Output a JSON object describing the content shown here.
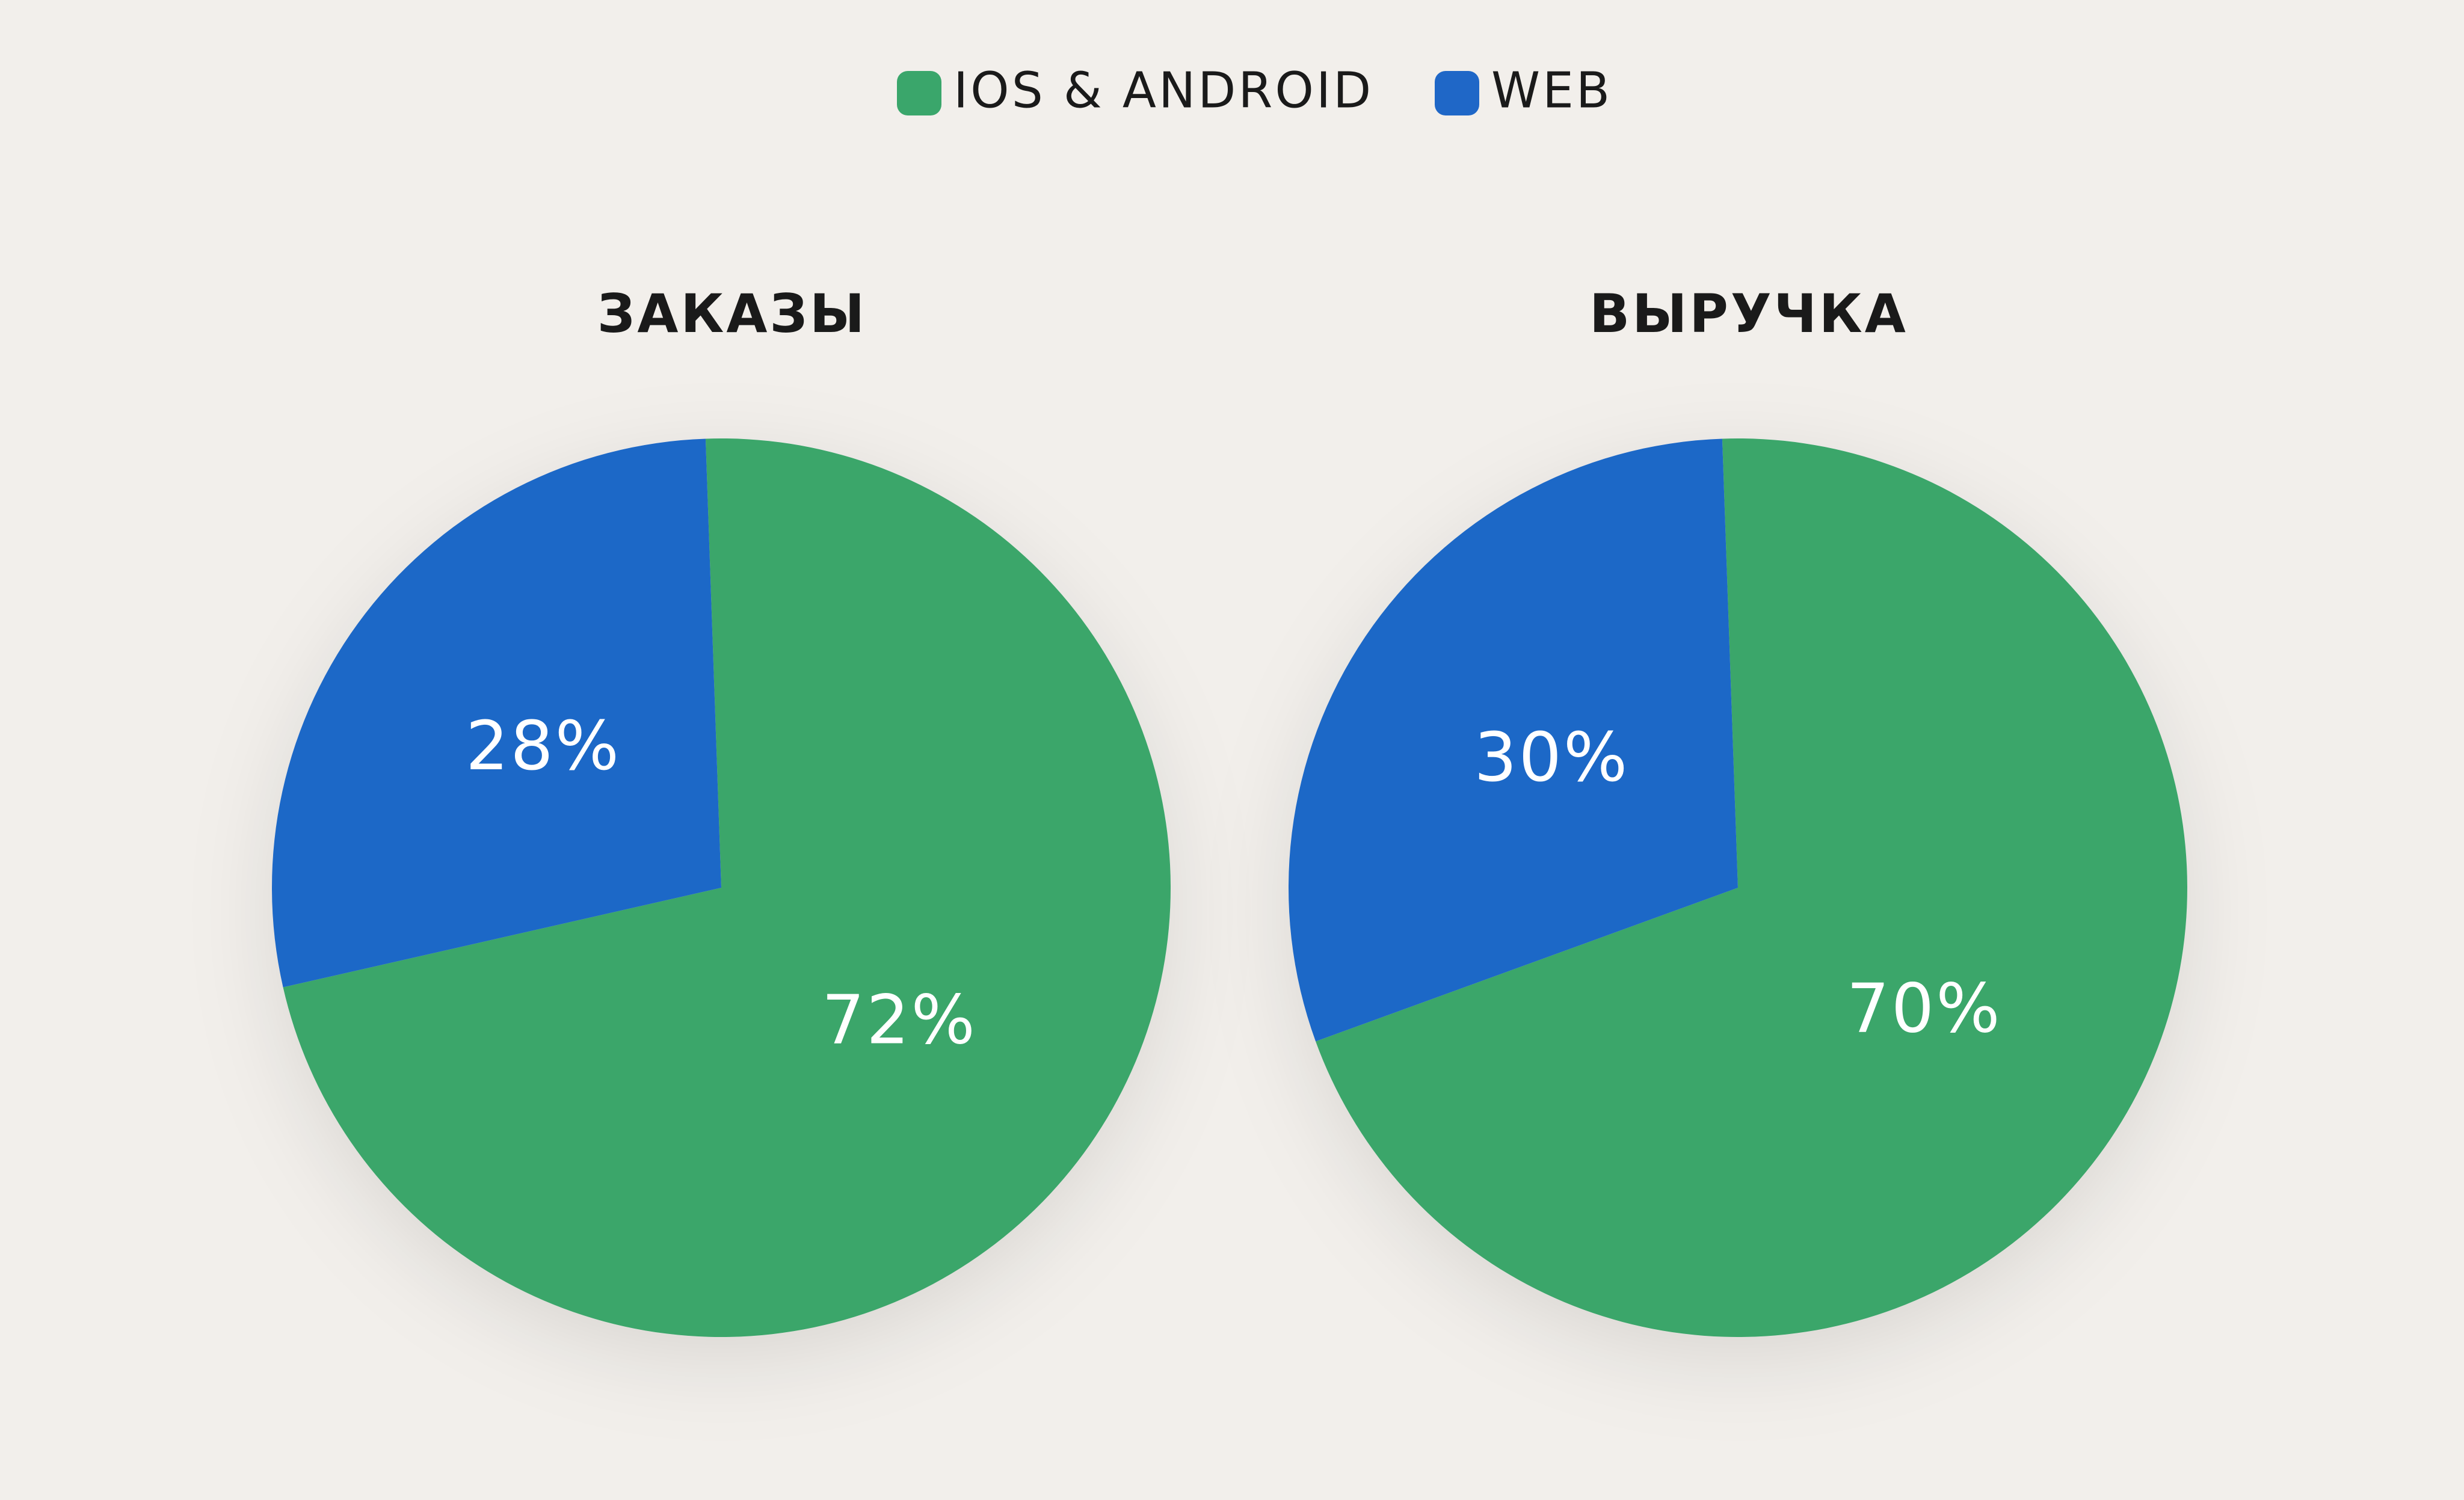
{
  "legend": {
    "items": [
      {
        "name": "IOS & ANDROID",
        "color": "#3aa66b"
      },
      {
        "name": "WEB",
        "color": "#1f67c7"
      }
    ]
  },
  "chart_data": [
    {
      "type": "pie",
      "title": "ЗАКАЗЫ",
      "values": [
        72,
        28
      ],
      "value_labels": [
        "72%",
        "28%"
      ]
    },
    {
      "type": "pie",
      "title": "ВЫРУЧКА",
      "values": [
        70,
        30
      ],
      "value_labels": [
        "70%",
        "30%"
      ]
    }
  ]
}
